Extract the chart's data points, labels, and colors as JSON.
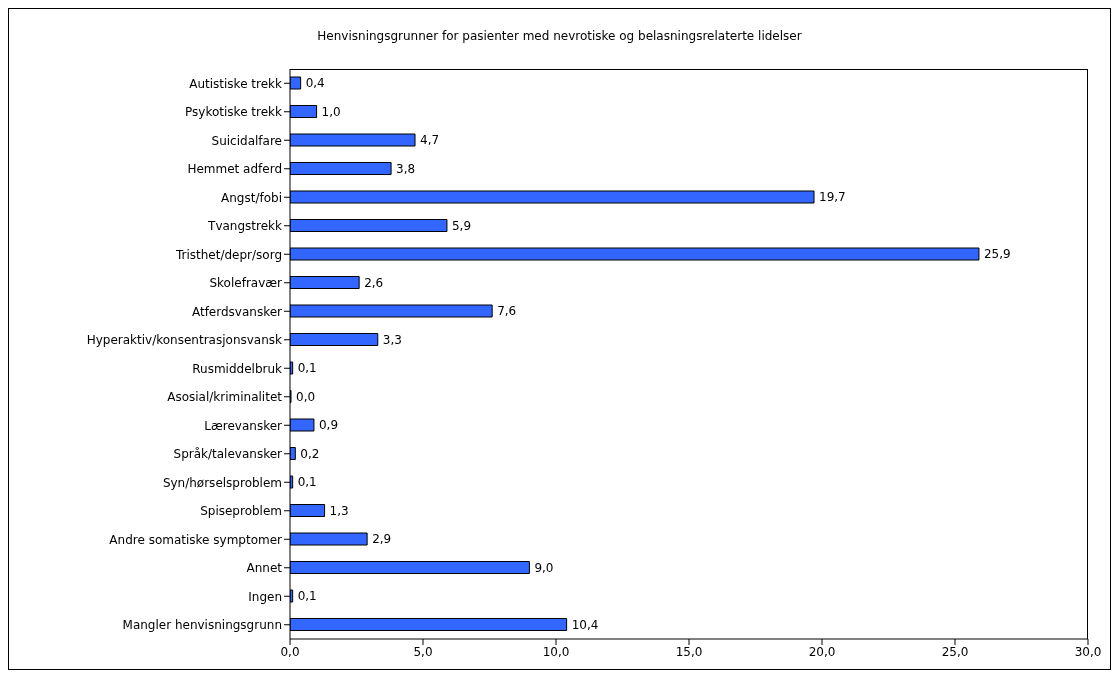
{
  "chart_data": {
    "type": "bar",
    "orientation": "horizontal",
    "title": "Henvisningsgrunner for pasienter med nevrotiske og belasningsrelaterte lidelser",
    "categories": [
      "Autistiske trekk",
      "Psykotiske trekk",
      "Suicidalfare",
      "Hemmet adferd",
      "Angst/fobi",
      "Tvangstrekk",
      "Tristhet/depr/sorg",
      "Skolefravær",
      "Atferdsvansker",
      "Hyperaktiv/konsentrasjonsvansk",
      "Rusmiddelbruk",
      "Asosial/kriminalitet",
      "Lærevansker",
      "Språk/talevansker",
      "Syn/hørselsproblem",
      "Spiseproblem",
      "Andre somatiske symptomer",
      "Annet",
      "Ingen",
      "Mangler henvisningsgrunn"
    ],
    "values": [
      0.4,
      1.0,
      4.7,
      3.8,
      19.7,
      5.9,
      25.9,
      2.6,
      7.6,
      3.3,
      0.1,
      0.0,
      0.9,
      0.2,
      0.1,
      1.3,
      2.9,
      9.0,
      0.1,
      10.4
    ],
    "value_labels": [
      "0,4",
      "1,0",
      "4,7",
      "3,8",
      "19,7",
      "5,9",
      "25,9",
      "2,6",
      "7,6",
      "3,3",
      "0,1",
      "0,0",
      "0,9",
      "0,2",
      "0,1",
      "1,3",
      "2,9",
      "9,0",
      "0,1",
      "10,4"
    ],
    "color": "#3366ff",
    "xlim": [
      0,
      30
    ],
    "xticks": [
      {
        "value": 0,
        "label": "0,0"
      },
      {
        "value": 5,
        "label": "5,0"
      },
      {
        "value": 10,
        "label": "10,0"
      },
      {
        "value": 15,
        "label": "15,0"
      },
      {
        "value": 20,
        "label": "20,0"
      },
      {
        "value": 25,
        "label": "25,0"
      },
      {
        "value": 30,
        "label": "30,0"
      }
    ],
    "grid": false,
    "legend": false
  }
}
